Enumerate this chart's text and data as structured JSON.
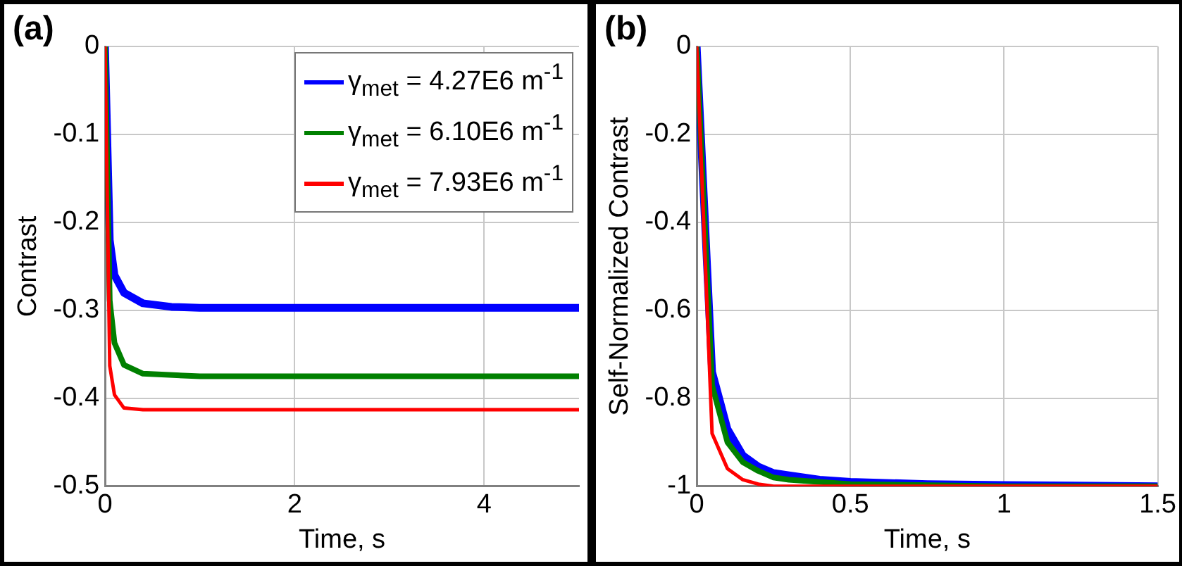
{
  "chart_data": [
    {
      "type": "line",
      "title": "(a)",
      "xlabel": "Time, s",
      "ylabel": "Contrast",
      "xlim": [
        0,
        5
      ],
      "xticks": [
        0,
        2,
        4
      ],
      "ylim": [
        -0.5,
        0
      ],
      "yticks": [
        -0.5,
        -0.4,
        -0.3,
        -0.2,
        -0.1,
        0
      ],
      "grid": true,
      "legend": "top right",
      "series": [
        {
          "name": "γ$_{met}$ = 4.27E6 m$^{-1}$",
          "color": "#0000ff",
          "x": [
            0,
            0.05,
            0.1,
            0.2,
            0.4,
            0.7,
            1,
            5
          ],
          "values": [
            0,
            -0.22,
            -0.26,
            -0.28,
            -0.292,
            -0.296,
            -0.297,
            -0.297
          ]
        },
        {
          "name": "γ$_{met}$ = 6.10E6 m$^{-1}$",
          "color": "#008000",
          "x": [
            0,
            0.05,
            0.1,
            0.2,
            0.4,
            1,
            5
          ],
          "values": [
            0,
            -0.289,
            -0.337,
            -0.362,
            -0.372,
            -0.375,
            -0.375
          ]
        },
        {
          "name": "γ$_{met}$ = 7.93E6 m$^{-1}$",
          "color": "#ff0000",
          "x": [
            0,
            0.05,
            0.1,
            0.2,
            0.4,
            5
          ],
          "values": [
            0,
            -0.363,
            -0.396,
            -0.411,
            -0.413,
            -0.413
          ]
        }
      ]
    },
    {
      "type": "line",
      "title": "(b)",
      "xlabel": "Time, s",
      "ylabel": "Self-Normalized Contrast",
      "xlim": [
        0,
        1.5
      ],
      "xticks": [
        0,
        0.5,
        1,
        1.5
      ],
      "ylim": [
        -1,
        0
      ],
      "yticks": [
        -1,
        -0.8,
        -0.6,
        -0.4,
        -0.2,
        0
      ],
      "grid": true,
      "series": [
        {
          "color": "#0000ff",
          "x": [
            0,
            0.05,
            0.1,
            0.15,
            0.2,
            0.25,
            0.3,
            0.4,
            0.5,
            0.75,
            1,
            1.5
          ],
          "values": [
            0,
            -0.74,
            -0.87,
            -0.93,
            -0.955,
            -0.97,
            -0.975,
            -0.985,
            -0.99,
            -0.995,
            -0.997,
            -1
          ]
        },
        {
          "color": "#008000",
          "x": [
            0,
            0.05,
            0.1,
            0.15,
            0.2,
            0.25,
            0.3,
            0.5,
            1,
            1.5
          ],
          "values": [
            0,
            -0.77,
            -0.9,
            -0.945,
            -0.965,
            -0.98,
            -0.985,
            -0.995,
            -1,
            -1
          ]
        },
        {
          "color": "#ff0000",
          "x": [
            0,
            0.05,
            0.1,
            0.15,
            0.2,
            0.25,
            1.5
          ],
          "values": [
            0,
            -0.88,
            -0.96,
            -0.985,
            -0.995,
            -1,
            -1
          ]
        }
      ]
    }
  ]
}
